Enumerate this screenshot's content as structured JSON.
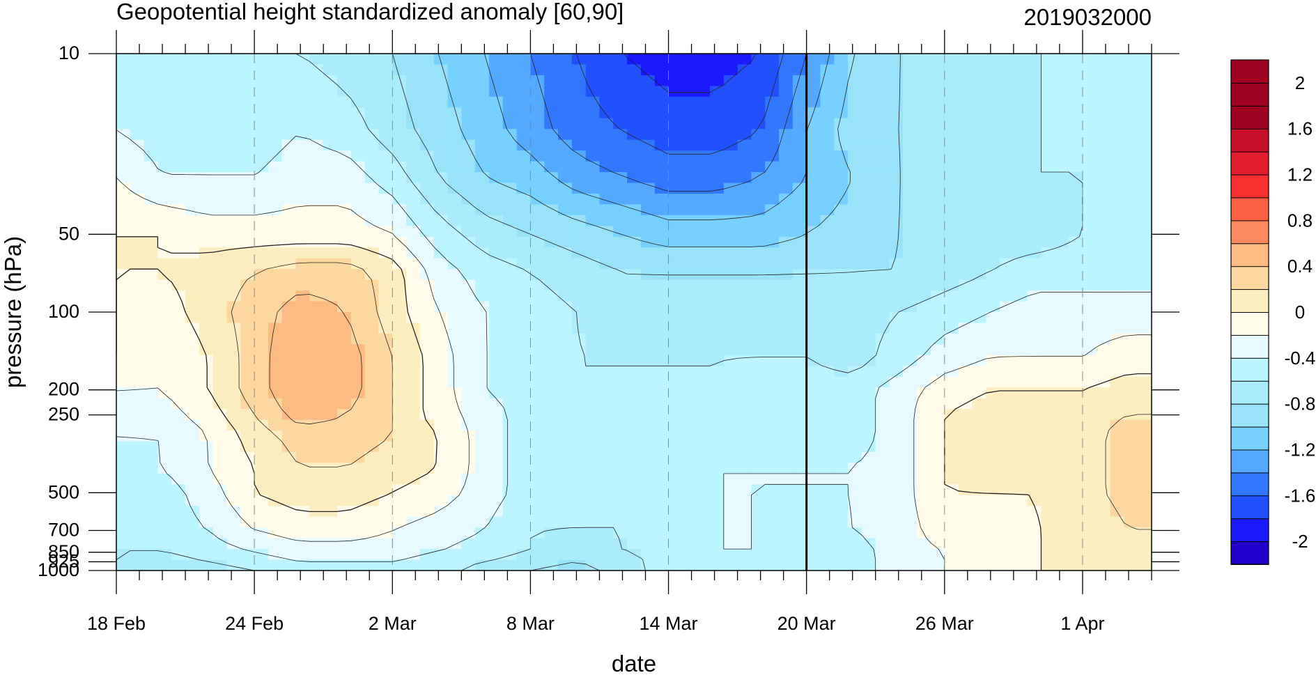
{
  "chart_data": {
    "type": "heatmap",
    "title": "Geopotential height standardized anomaly [60,90]",
    "date_label": "2019032000",
    "xlabel": "date",
    "ylabel": "pressure (hPa)",
    "x_ticks": [
      {
        "label": "18 Feb",
        "day": 0
      },
      {
        "label": "24 Feb",
        "day": 6
      },
      {
        "label": "2 Mar",
        "day": 12
      },
      {
        "label": "8 Mar",
        "day": 18
      },
      {
        "label": "14 Mar",
        "day": 24
      },
      {
        "label": "20 Mar",
        "day": 30
      },
      {
        "label": "26 Mar",
        "day": 36
      },
      {
        "label": "1 Apr",
        "day": 42
      }
    ],
    "x_range_days": [
      0,
      45
    ],
    "current_day": 30,
    "y_scale": "log",
    "y_range": [
      1000,
      10
    ],
    "y_ticks": [
      10,
      50,
      100,
      200,
      250,
      500,
      700,
      850,
      925,
      1000
    ],
    "y_tick_labels": [
      "10",
      "50",
      "100",
      "200",
      "250",
      "500",
      "700",
      "850",
      "925",
      "1000"
    ],
    "colorbar": {
      "levels": [
        -2.2,
        -2.0,
        -1.8,
        -1.6,
        -1.4,
        -1.2,
        -1.0,
        -0.8,
        -0.6,
        -0.4,
        -0.2,
        0.0,
        0.2,
        0.4,
        0.6,
        0.8,
        1.0,
        1.2,
        1.4,
        1.6,
        1.8,
        2.0,
        2.2
      ],
      "colors": [
        "#2200cc",
        "#1a1aff",
        "#2250ff",
        "#3377ff",
        "#55aaff",
        "#77d0ff",
        "#99e2fa",
        "#aaecfc",
        "#bbf5ff",
        "#e6faff",
        "#fffdea",
        "#fdeec0",
        "#fdd7a0",
        "#fdba82",
        "#fd8a60",
        "#fd6045",
        "#f83030",
        "#e01e2e",
        "#c80f28",
        "#a00020",
        "#a00020",
        "#a00020"
      ],
      "labels": [
        "2",
        "1.6",
        "1.2",
        "0.8",
        "0.4",
        "0",
        "-0.4",
        "-0.8",
        "-1.2",
        "-1.6",
        "-2"
      ],
      "label_values": [
        2.0,
        1.6,
        1.2,
        0.8,
        0.4,
        0.0,
        -0.4,
        -0.8,
        -1.2,
        -1.6,
        -2.0
      ]
    },
    "levels_hpa": [
      10,
      20,
      30,
      50,
      70,
      100,
      150,
      200,
      250,
      300,
      400,
      500,
      700,
      850,
      925,
      1000
    ],
    "days": [
      0,
      2,
      4,
      6,
      8,
      10,
      12,
      14,
      16,
      18,
      20,
      22,
      24,
      26,
      28,
      30,
      32,
      34,
      36,
      38,
      40,
      42,
      44,
      45
    ],
    "values": [
      [
        -0.5,
        -0.6,
        -0.6,
        -0.6,
        -0.6,
        -0.7,
        -0.8,
        -1.0,
        -1.2,
        -1.4,
        -1.6,
        -1.8,
        -1.9,
        -1.9,
        -1.8,
        -1.4,
        -1.0,
        -0.8,
        -0.7,
        -0.7,
        -0.6,
        -0.6,
        -0.6,
        -0.6
      ],
      [
        -0.4,
        -0.5,
        -0.5,
        -0.5,
        -0.4,
        -0.5,
        -0.7,
        -0.9,
        -1.1,
        -1.3,
        -1.5,
        -1.6,
        -1.7,
        -1.7,
        -1.6,
        -1.2,
        -0.9,
        -0.8,
        -0.7,
        -0.7,
        -0.6,
        -0.6,
        -0.6,
        -0.6
      ],
      [
        -0.2,
        -0.4,
        -0.4,
        -0.4,
        -0.3,
        -0.3,
        -0.5,
        -0.8,
        -1.0,
        -1.1,
        -1.3,
        -1.4,
        -1.5,
        -1.5,
        -1.4,
        -1.2,
        -1.0,
        -0.8,
        -0.7,
        -0.7,
        -0.6,
        -0.6,
        -0.6,
        -0.6
      ],
      [
        0.0,
        0.0,
        -0.1,
        -0.1,
        -0.1,
        -0.1,
        -0.2,
        -0.5,
        -0.7,
        -0.8,
        -0.9,
        -1.0,
        -1.1,
        -1.1,
        -1.1,
        -1.0,
        -0.9,
        -0.8,
        -0.7,
        -0.7,
        -0.7,
        -0.6,
        -0.6,
        -0.6
      ],
      [
        0.0,
        0.0,
        0.1,
        0.2,
        0.3,
        0.3,
        0.1,
        -0.3,
        -0.5,
        -0.6,
        -0.7,
        -0.8,
        -0.8,
        -0.8,
        -0.8,
        -0.8,
        -0.8,
        -0.8,
        -0.7,
        -0.6,
        -0.5,
        -0.5,
        -0.5,
        -0.5
      ],
      [
        0.0,
        -0.1,
        0.1,
        0.3,
        0.5,
        0.4,
        0.1,
        -0.2,
        -0.4,
        -0.5,
        -0.6,
        -0.7,
        -0.7,
        -0.7,
        -0.7,
        -0.7,
        -0.7,
        -0.6,
        -0.5,
        -0.4,
        -0.3,
        -0.3,
        -0.3,
        -0.3
      ],
      [
        0.0,
        -0.2,
        0.0,
        0.3,
        0.6,
        0.5,
        0.2,
        -0.1,
        -0.4,
        -0.5,
        -0.6,
        -0.6,
        -0.6,
        -0.6,
        -0.6,
        -0.6,
        -0.7,
        -0.5,
        -0.3,
        -0.2,
        -0.2,
        -0.2,
        -0.1,
        -0.1
      ],
      [
        -0.2,
        -0.2,
        0.0,
        0.3,
        0.6,
        0.5,
        0.2,
        -0.1,
        -0.4,
        -0.5,
        -0.6,
        -0.6,
        -0.6,
        -0.6,
        -0.5,
        -0.5,
        -0.5,
        -0.3,
        -0.1,
        0.0,
        0.0,
        0.0,
        0.1,
        0.1
      ],
      [
        -0.3,
        -0.3,
        -0.1,
        0.2,
        0.5,
        0.4,
        0.2,
        -0.1,
        -0.3,
        -0.5,
        -0.6,
        -0.6,
        -0.6,
        -0.6,
        -0.5,
        -0.5,
        -0.5,
        -0.3,
        0.0,
        0.1,
        0.1,
        0.1,
        0.2,
        0.2
      ],
      [
        -0.4,
        -0.4,
        -0.2,
        0.1,
        0.3,
        0.3,
        0.2,
        0.0,
        -0.3,
        -0.5,
        -0.6,
        -0.6,
        -0.6,
        -0.5,
        -0.5,
        -0.5,
        -0.5,
        -0.3,
        0.0,
        0.1,
        0.1,
        0.1,
        0.3,
        0.3
      ],
      [
        -0.5,
        -0.4,
        -0.2,
        0.0,
        0.2,
        0.2,
        0.1,
        0.0,
        -0.3,
        -0.5,
        -0.6,
        -0.6,
        -0.5,
        -0.4,
        -0.4,
        -0.4,
        -0.4,
        -0.3,
        0.0,
        0.1,
        0.1,
        0.1,
        0.3,
        0.3
      ],
      [
        -0.5,
        -0.5,
        -0.3,
        0.0,
        0.1,
        0.1,
        0.0,
        -0.1,
        -0.3,
        -0.5,
        -0.6,
        -0.6,
        -0.5,
        -0.4,
        -0.4,
        -0.4,
        -0.4,
        -0.3,
        0.0,
        0.0,
        0.0,
        0.1,
        0.3,
        0.3
      ],
      [
        -0.6,
        -0.5,
        -0.4,
        -0.2,
        -0.1,
        -0.1,
        -0.2,
        -0.3,
        -0.4,
        -0.6,
        -0.6,
        -0.6,
        -0.5,
        -0.4,
        -0.4,
        -0.5,
        -0.4,
        -0.3,
        -0.1,
        -0.1,
        0.0,
        0.0,
        0.2,
        0.2
      ],
      [
        -0.6,
        -0.6,
        -0.5,
        -0.4,
        -0.3,
        -0.3,
        -0.3,
        -0.4,
        -0.5,
        -0.6,
        -0.7,
        -0.6,
        -0.5,
        -0.4,
        -0.4,
        -0.5,
        -0.5,
        -0.3,
        -0.2,
        -0.1,
        0.0,
        0.0,
        0.1,
        0.1
      ],
      [
        -0.6,
        -0.7,
        -0.6,
        -0.5,
        -0.4,
        -0.4,
        -0.4,
        -0.5,
        -0.6,
        -0.7,
        -0.8,
        -0.7,
        -0.5,
        -0.4,
        -0.5,
        -0.6,
        -0.5,
        -0.3,
        -0.2,
        -0.1,
        0.0,
        0.0,
        0.1,
        0.1
      ],
      [
        -0.7,
        -0.7,
        -0.7,
        -0.6,
        -0.5,
        -0.5,
        -0.5,
        -0.5,
        -0.7,
        -0.8,
        -0.9,
        -0.7,
        -0.5,
        -0.4,
        -0.5,
        -0.6,
        -0.5,
        -0.3,
        -0.2,
        -0.1,
        0.0,
        0.0,
        0.1,
        0.1
      ]
    ]
  }
}
